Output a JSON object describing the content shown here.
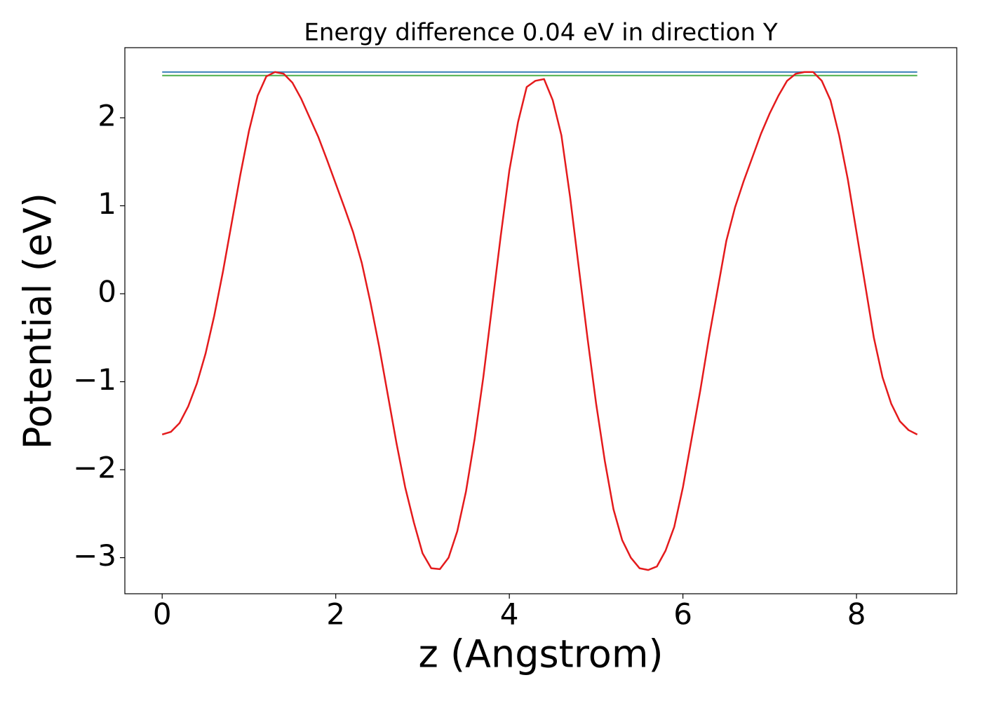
{
  "chart_data": {
    "type": "line",
    "title": "Energy difference 0.04 eV in direction Y",
    "xlabel": "z (Angstrom)",
    "ylabel": "Potential (eV)",
    "x": [
      0,
      0.1,
      0.2,
      0.3,
      0.4,
      0.5,
      0.6,
      0.7,
      0.8,
      0.9,
      1.0,
      1.1,
      1.2,
      1.3,
      1.4,
      1.5,
      1.6,
      1.7,
      1.8,
      1.9,
      2.0,
      2.1,
      2.2,
      2.3,
      2.4,
      2.5,
      2.6,
      2.7,
      2.8,
      2.9,
      3.0,
      3.1,
      3.2,
      3.3,
      3.4,
      3.5,
      3.6,
      3.7,
      3.8,
      3.9,
      4.0,
      4.1,
      4.2,
      4.3,
      4.4,
      4.5,
      4.6,
      4.7,
      4.8,
      4.9,
      5.0,
      5.1,
      5.2,
      5.3,
      5.4,
      5.5,
      5.6,
      5.7,
      5.8,
      5.9,
      6.0,
      6.1,
      6.2,
      6.3,
      6.4,
      6.5,
      6.6,
      6.7,
      6.8,
      6.9,
      7.0,
      7.1,
      7.2,
      7.3,
      7.4,
      7.5,
      7.6,
      7.7,
      7.8,
      7.9,
      8.0,
      8.1,
      8.2,
      8.3,
      8.4,
      8.5,
      8.6,
      8.7
    ],
    "series": [
      {
        "color": "#e41a1c",
        "values": [
          -1.6,
          -1.57,
          -1.47,
          -1.28,
          -1.02,
          -0.68,
          -0.25,
          0.25,
          0.8,
          1.35,
          1.85,
          2.25,
          2.47,
          2.52,
          2.5,
          2.4,
          2.22,
          2.0,
          1.78,
          1.52,
          1.25,
          0.98,
          0.7,
          0.35,
          -0.1,
          -0.6,
          -1.15,
          -1.7,
          -2.2,
          -2.6,
          -2.95,
          -3.12,
          -3.13,
          -3.0,
          -2.7,
          -2.25,
          -1.65,
          -0.95,
          -0.15,
          0.65,
          1.4,
          1.95,
          2.35,
          2.42,
          2.44,
          2.2,
          1.8,
          1.1,
          0.3,
          -0.5,
          -1.25,
          -1.9,
          -2.45,
          -2.8,
          -3.0,
          -3.12,
          -3.14,
          -3.1,
          -2.92,
          -2.65,
          -2.2,
          -1.65,
          -1.1,
          -0.5,
          0.05,
          0.6,
          0.98,
          1.28,
          1.55,
          1.82,
          2.05,
          2.25,
          2.42,
          2.5,
          2.52,
          2.52,
          2.42,
          2.2,
          1.8,
          1.3,
          0.7,
          0.1,
          -0.5,
          -0.95,
          -1.25,
          -1.45,
          -1.55,
          -1.6
        ]
      }
    ],
    "hlines": [
      {
        "value": 2.52,
        "color": "#377eb8"
      },
      {
        "value": 2.48,
        "color": "#4daf4a"
      }
    ],
    "xlim": [
      -0.43,
      9.155
    ],
    "ylim": [
      -3.41,
      2.797
    ],
    "xticks": [
      0,
      2,
      4,
      6,
      8
    ],
    "yticks": [
      {
        "value": -3,
        "label": "−3"
      },
      {
        "value": -2,
        "label": "−2"
      },
      {
        "value": -1,
        "label": "−1"
      },
      0,
      1,
      2
    ]
  }
}
